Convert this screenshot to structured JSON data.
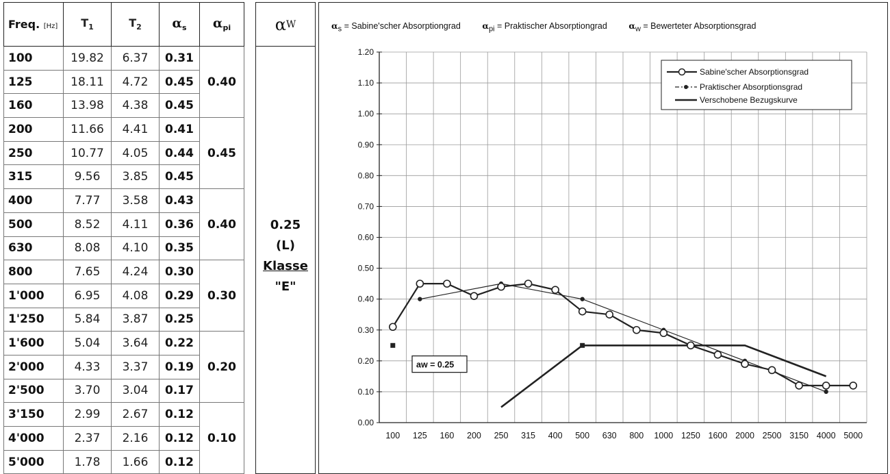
{
  "table": {
    "headers": {
      "freq": "Freq.",
      "freq_unit": "[Hz]",
      "t1": "T",
      "t1_sub": "1",
      "t2": "T",
      "t2_sub": "2",
      "as": "α",
      "as_sub": "s",
      "api": "α",
      "api_sub": "pi"
    },
    "rows": [
      {
        "freq": "100",
        "t1": "19.82",
        "t2": "6.37",
        "as": "0.31"
      },
      {
        "freq": "125",
        "t1": "18.11",
        "t2": "4.72",
        "as": "0.45"
      },
      {
        "freq": "160",
        "t1": "13.98",
        "t2": "4.38",
        "as": "0.45"
      },
      {
        "freq": "200",
        "t1": "11.66",
        "t2": "4.41",
        "as": "0.41"
      },
      {
        "freq": "250",
        "t1": "10.77",
        "t2": "4.05",
        "as": "0.44"
      },
      {
        "freq": "315",
        "t1": "9.56",
        "t2": "3.85",
        "as": "0.45"
      },
      {
        "freq": "400",
        "t1": "7.77",
        "t2": "3.58",
        "as": "0.43"
      },
      {
        "freq": "500",
        "t1": "8.52",
        "t2": "4.11",
        "as": "0.36"
      },
      {
        "freq": "630",
        "t1": "8.08",
        "t2": "4.10",
        "as": "0.35"
      },
      {
        "freq": "800",
        "t1": "7.65",
        "t2": "4.24",
        "as": "0.30"
      },
      {
        "freq": "1'000",
        "t1": "6.95",
        "t2": "4.08",
        "as": "0.29"
      },
      {
        "freq": "1'250",
        "t1": "5.84",
        "t2": "3.87",
        "as": "0.25"
      },
      {
        "freq": "1'600",
        "t1": "5.04",
        "t2": "3.64",
        "as": "0.22"
      },
      {
        "freq": "2'000",
        "t1": "4.33",
        "t2": "3.37",
        "as": "0.19"
      },
      {
        "freq": "2'500",
        "t1": "3.70",
        "t2": "3.04",
        "as": "0.17"
      },
      {
        "freq": "3'150",
        "t1": "2.99",
        "t2": "2.67",
        "as": "0.12"
      },
      {
        "freq": "4'000",
        "t1": "2.37",
        "t2": "2.16",
        "as": "0.12"
      },
      {
        "freq": "5'000",
        "t1": "1.78",
        "t2": "1.66",
        "as": "0.12"
      }
    ],
    "api_values": [
      "0.40",
      "0.45",
      "0.40",
      "0.30",
      "0.20",
      "0.10"
    ]
  },
  "aw": {
    "header": "α",
    "header_sub": "W",
    "value": "0.25",
    "shape": "(L)",
    "klasse": "Klasse",
    "klasse_value": "\"E\""
  },
  "chart_data": {
    "type": "line",
    "header_legend": [
      {
        "sym": "α",
        "sub": "s",
        "text": "= Sabine'scher Absorptiongrad"
      },
      {
        "sym": "α",
        "sub": "pi",
        "text": "= Praktischer Absorptiongrad"
      },
      {
        "sym": "α",
        "sub": "w",
        "text": "= Bewerteter Absorptionsgrad"
      }
    ],
    "categories": [
      "100",
      "125",
      "160",
      "200",
      "250",
      "315",
      "400",
      "500",
      "630",
      "800",
      "1000",
      "1250",
      "1600",
      "2000",
      "2500",
      "3150",
      "4000",
      "5000"
    ],
    "ylim": [
      0,
      1.2
    ],
    "yticks": [
      "0.00",
      "0.10",
      "0.20",
      "0.30",
      "0.40",
      "0.50",
      "0.60",
      "0.70",
      "0.80",
      "0.90",
      "1.00",
      "1.10",
      "1.20"
    ],
    "grid": true,
    "legend_position": "top-right",
    "series": [
      {
        "name": "Sabine'scher Absorptionsgrad",
        "style": "line-open-circle",
        "values": [
          0.31,
          0.45,
          0.45,
          0.41,
          0.44,
          0.45,
          0.43,
          0.36,
          0.35,
          0.3,
          0.29,
          0.25,
          0.22,
          0.19,
          0.17,
          0.12,
          0.12,
          0.12
        ]
      },
      {
        "name": "Praktischer Absorptionsgrad",
        "style": "dashdot-filled-dot",
        "points": [
          {
            "x": "125",
            "y": 0.4
          },
          {
            "x": "250",
            "y": 0.45
          },
          {
            "x": "500",
            "y": 0.4
          },
          {
            "x": "1000",
            "y": 0.3
          },
          {
            "x": "2000",
            "y": 0.2
          },
          {
            "x": "4000",
            "y": 0.1
          }
        ]
      },
      {
        "name": "Verschobene Bezugskurve",
        "style": "thick-line",
        "points": [
          {
            "x": "250",
            "y": 0.05
          },
          {
            "x": "500",
            "y": 0.25
          },
          {
            "x": "2000",
            "y": 0.25
          },
          {
            "x": "4000",
            "y": 0.15
          }
        ]
      }
    ],
    "markers": [
      {
        "x": "100",
        "y": 0.25
      },
      {
        "x": "500",
        "y": 0.25
      }
    ],
    "annotation": "aw = 0.25",
    "colors": {
      "line": "#222222",
      "grid": "#9a9a9a"
    }
  }
}
